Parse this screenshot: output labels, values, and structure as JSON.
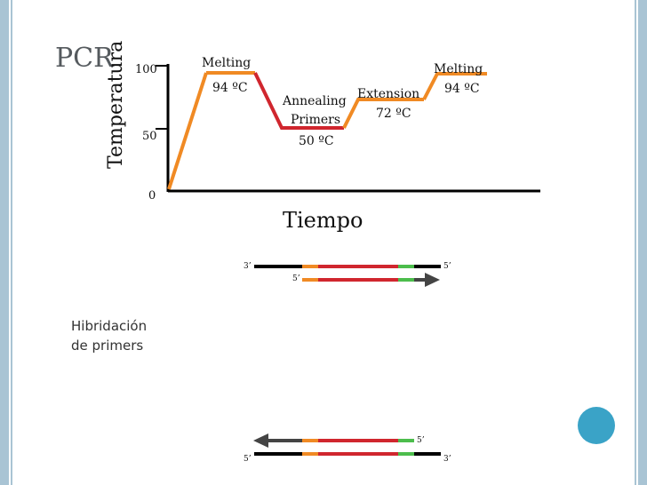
{
  "slide": {
    "title": "PCR",
    "caption_line1": "Hibridación",
    "caption_line2": "de primers"
  },
  "chart": {
    "ylabel": "Temperatura",
    "xlabel": "Tiempo",
    "yticks": [
      "100",
      "50",
      "0"
    ],
    "steps": [
      {
        "name": "Melting",
        "temp": "94 ºC"
      },
      {
        "name_line1": "Annealing",
        "name_line2": "Primers",
        "temp": "50 ºC"
      },
      {
        "name": "Extension",
        "temp": "72 ºC"
      },
      {
        "name": "Melting",
        "temp": "94 ºC"
      }
    ]
  },
  "strands": {
    "top_pair": {
      "upper_left": "3’",
      "upper_right": "5’",
      "lower_left": "5’"
    },
    "bottom_pair": {
      "upper_right": "5’",
      "lower_left": "5’",
      "lower_right": "3’"
    }
  },
  "colors": {
    "orange": "#f08a24",
    "red": "#d0262e",
    "green": "#4cbd4c",
    "dark": "#444444",
    "black": "#000000",
    "accent_circle": "#3aa3c7",
    "border": "#a9c4d4"
  }
}
